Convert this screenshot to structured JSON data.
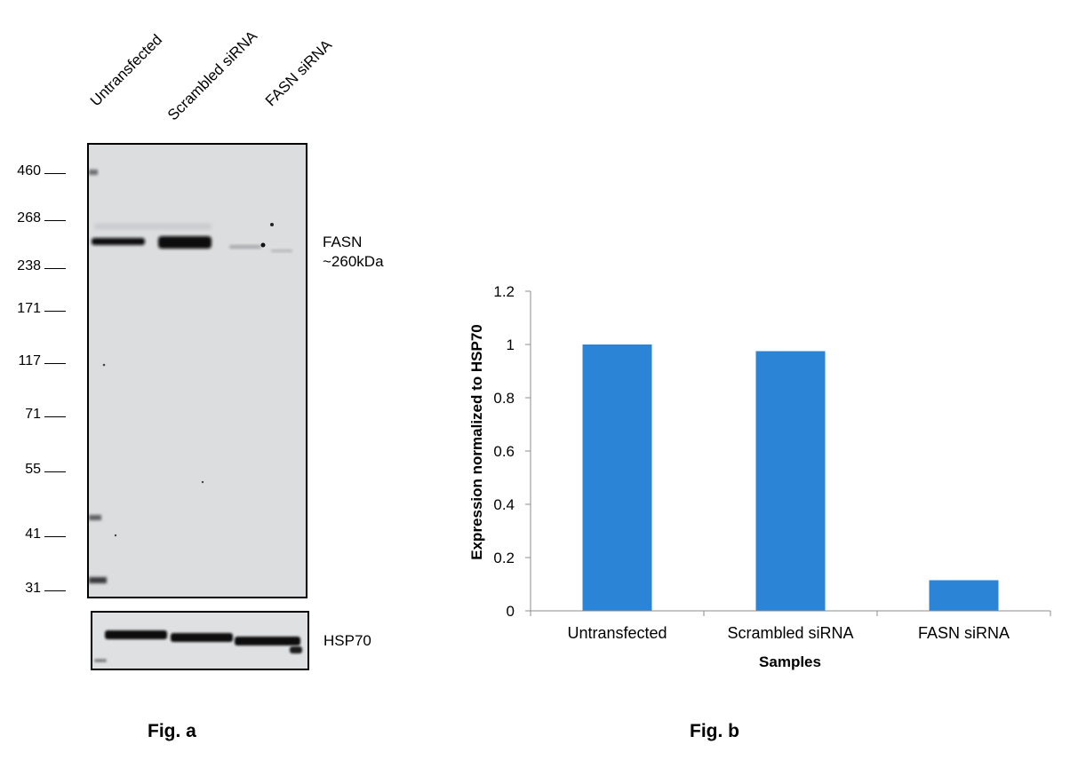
{
  "figure_a": {
    "lanes": [
      "Untransfected",
      "Scrambled siRNA",
      "FASN siRNA"
    ],
    "mw_markers": [
      "460",
      "268",
      "238",
      "171",
      "117",
      "71",
      "55",
      "41",
      "31"
    ],
    "target_label": "FASN",
    "target_size": "~260kDa",
    "loading_label": "HSP70",
    "caption": "Fig. a"
  },
  "chart_data": {
    "type": "bar",
    "categories": [
      "Untransfected",
      "Scrambled siRNA",
      "FASN siRNA"
    ],
    "values": [
      1.0,
      0.975,
      0.115
    ],
    "title": "",
    "xlabel": "Samples",
    "ylabel": "Expression normalized to HSP70",
    "ylim": [
      0,
      1.2
    ],
    "yticks": [
      "0",
      "0.2",
      "0.4",
      "0.6",
      "0.8",
      "1",
      "1.2"
    ],
    "bar_color": "#2b84d5",
    "grid": false,
    "legend": "none"
  },
  "figure_b": {
    "caption": "Fig. b"
  }
}
